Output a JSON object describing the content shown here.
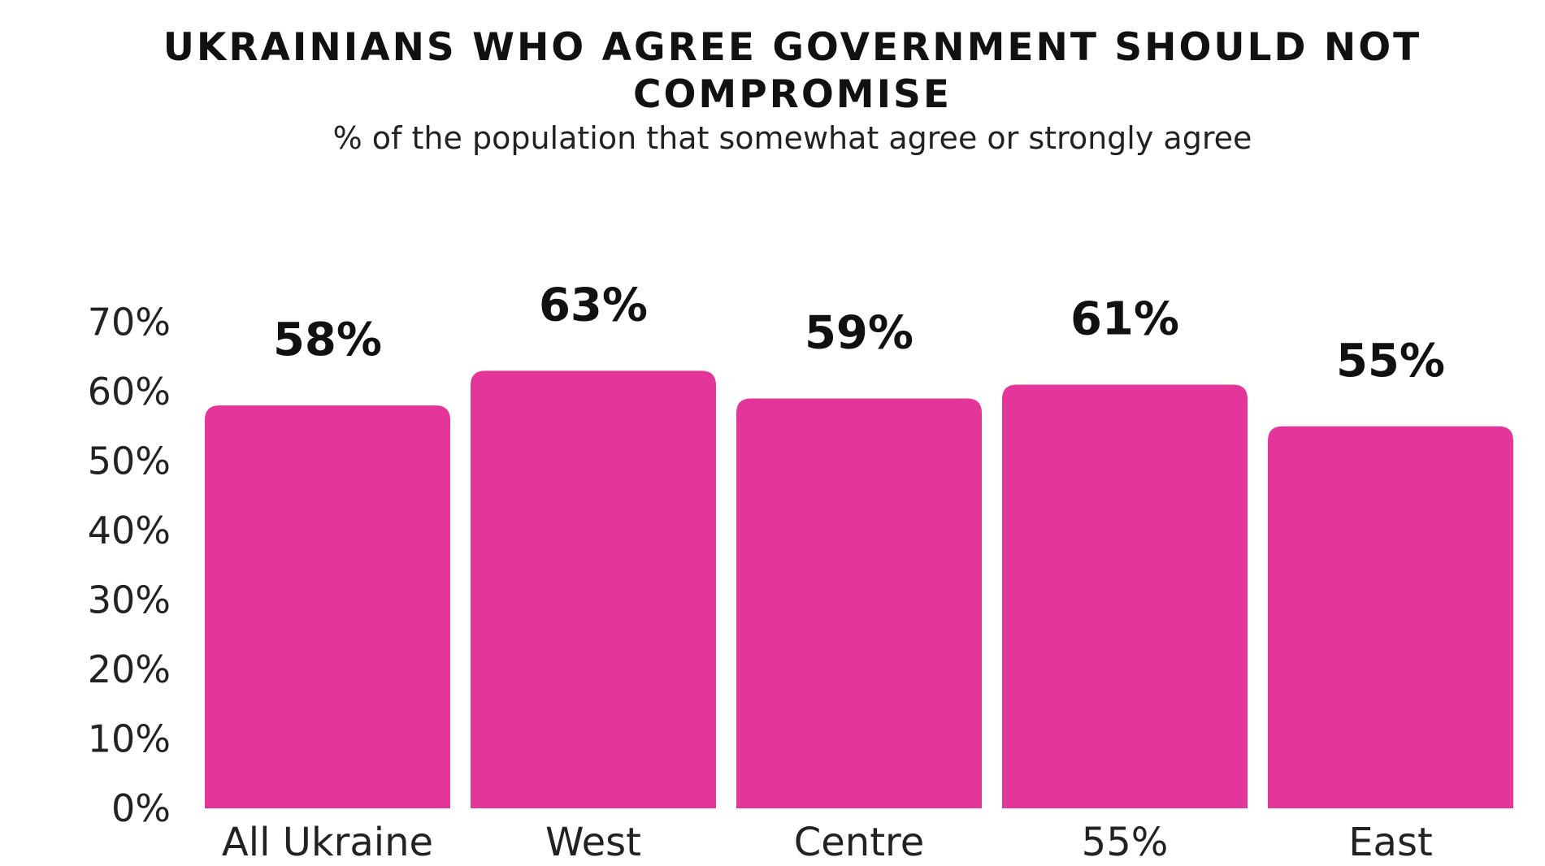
{
  "chart_data": {
    "type": "bar",
    "title": "UKRAINIANS WHO AGREE GOVERNMENT SHOULD NOT COMPROMISE",
    "subtitle": "% of the population that somewhat agree or strongly agree",
    "categories": [
      "All Ukraine",
      "West",
      "Centre",
      "55%",
      "East"
    ],
    "values": [
      58,
      63,
      59,
      61,
      55
    ],
    "value_labels": [
      "58%",
      "63%",
      "59%",
      "61%",
      "55%"
    ],
    "y_ticks": [
      0,
      10,
      20,
      30,
      40,
      50,
      60,
      70
    ],
    "y_tick_labels": [
      "0%",
      "10%",
      "20%",
      "30%",
      "40%",
      "50%",
      "60%",
      "70%"
    ],
    "ylim": [
      0,
      70
    ],
    "xlabel": "",
    "ylabel": "",
    "grid": false,
    "bar_color": "#E3359A"
  }
}
